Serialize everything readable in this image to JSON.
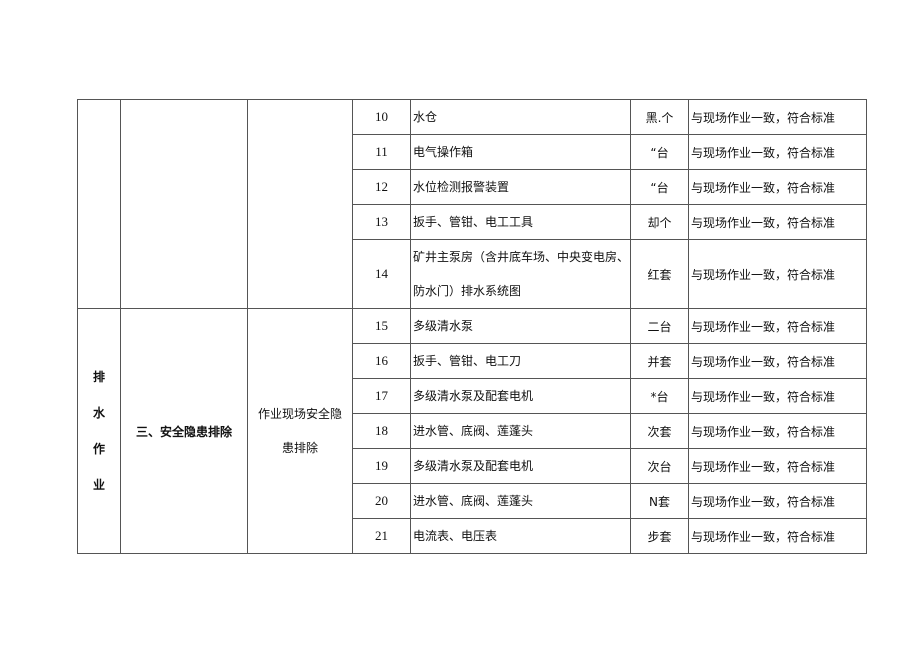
{
  "section": {
    "category_chars": [
      "排",
      "水",
      "作",
      "业"
    ],
    "item": "三、安全隐患排除",
    "subitem": "作业现场安全隐患排除"
  },
  "rows": [
    {
      "no": "10",
      "name": "水仓",
      "unit": "黑.个",
      "result": "与现场作业一致，符合标准"
    },
    {
      "no": "11",
      "name": "电气操作箱",
      "unit": "“台",
      "result": "与现场作业一致，符合标准"
    },
    {
      "no": "12",
      "name": "水位检测报警装置",
      "unit": "“台",
      "result": "与现场作业一致，符合标准"
    },
    {
      "no": "13",
      "name": "扳手、管钳、电工工具",
      "unit": "却个",
      "result": "与现场作业一致，符合标准"
    },
    {
      "no": "14",
      "name": "矿井主泵房（含井底车场、中央变电房、防水门）排水系统图",
      "unit": "红套",
      "result": "与现场作业一致，符合标准"
    },
    {
      "no": "15",
      "name": "多级清水泵",
      "unit": "二台",
      "result": "与现场作业一致，符合标准"
    },
    {
      "no": "16",
      "name": "扳手、管钳、电工刀",
      "unit": "并套",
      "result": "与现场作业一致，符合标准"
    },
    {
      "no": "17",
      "name": "多级清水泵及配套电机",
      "unit": "*台",
      "result": "与现场作业一致，符合标准"
    },
    {
      "no": "18",
      "name": "进水管、底阀、莲蓬头",
      "unit": "次套",
      "result": "与现场作业一致，符合标准"
    },
    {
      "no": "19",
      "name": "多级清水泵及配套电机",
      "unit": "次台",
      "result": "与现场作业一致，符合标准"
    },
    {
      "no": "20",
      "name": "进水管、底阀、莲蓬头",
      "unit": "N套",
      "result": "与现场作业一致，符合标准"
    },
    {
      "no": "21",
      "name": "电流表、电压表",
      "unit": "步套",
      "result": "与现场作业一致，符合标准"
    }
  ]
}
